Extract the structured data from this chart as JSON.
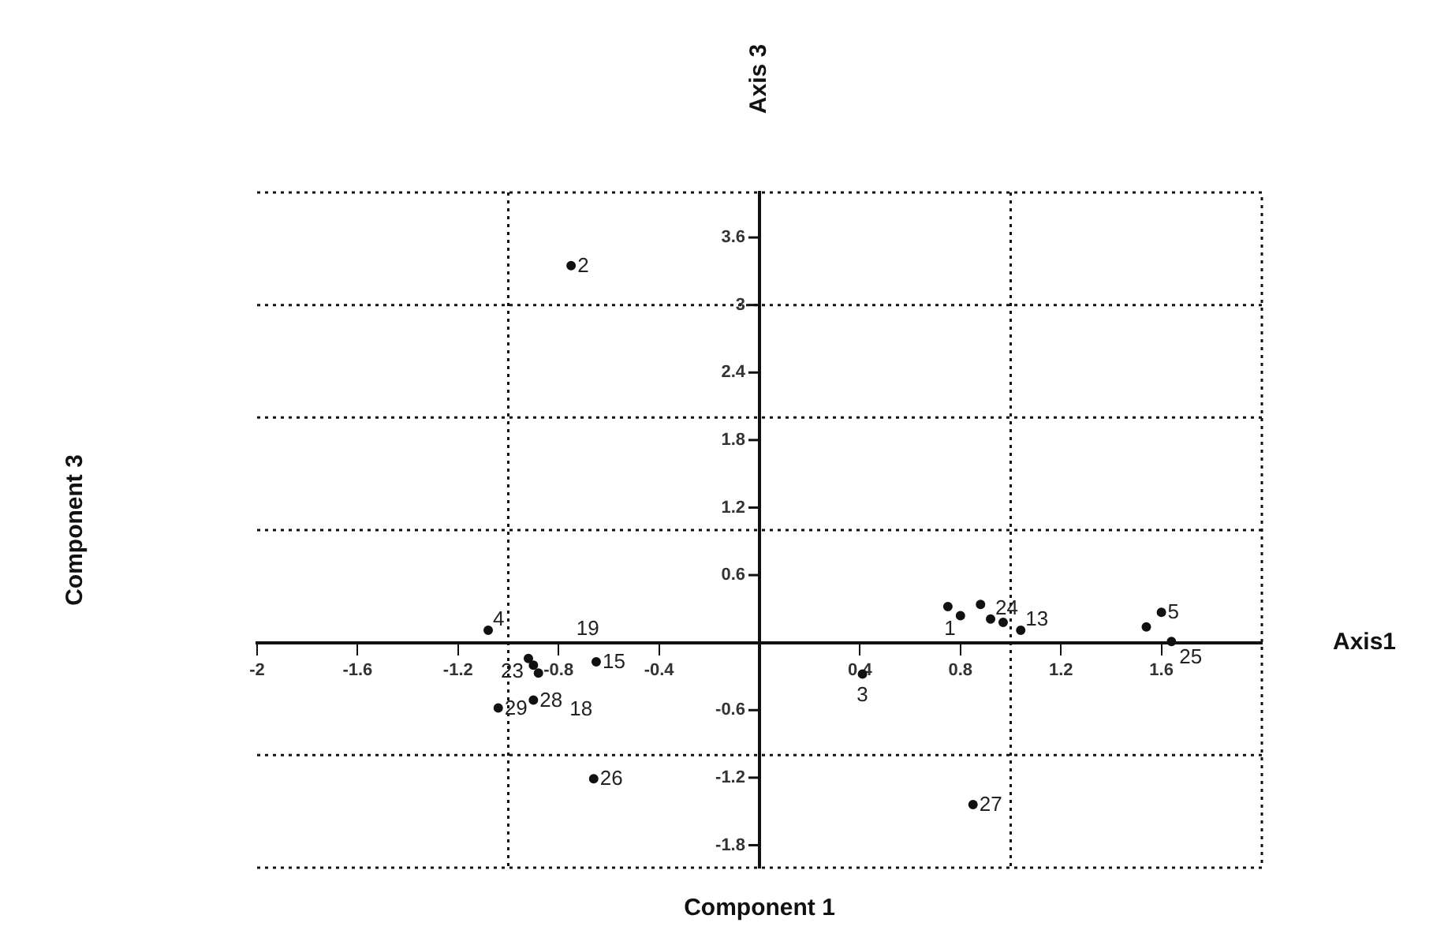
{
  "chart_data": {
    "type": "scatter",
    "xlabel": "Component 1",
    "annotations": [
      "Axis 3",
      "Axis1",
      "Component 3",
      {
        "text": "2",
        "x": -0.75,
        "y": 3.35
      },
      {
        "text": "26",
        "x": -0.66,
        "y": -1.21
      },
      {
        "text": "27",
        "x": 0.85,
        "y": -1.44
      },
      {
        "text": "3",
        "x": 0.41,
        "y": -0.28
      },
      {
        "text": "4",
        "x": -1.08,
        "y": 0.11
      },
      {
        "text": "29",
        "x": -1.04,
        "y": -0.58
      },
      {
        "text": "28",
        "x": -0.9,
        "y": -0.51
      },
      {
        "text": "23",
        "x": -0.92,
        "y": -0.14
      },
      {
        "text": "18",
        "x": -0.9,
        "y": -0.2
      },
      {
        "text": "19",
        "x": -0.88,
        "y": -0.27
      },
      {
        "text": "15",
        "x": -0.65,
        "y": -0.17
      },
      {
        "text": "1",
        "x": 0.8,
        "y": 0.24
      },
      {
        "text": "24",
        "x": 0.92,
        "y": 0.21
      },
      {
        "text": "13",
        "x": 1.04,
        "y": 0.11
      },
      {
        "text": "5",
        "x": 1.6,
        "y": 0.27
      },
      {
        "text": "25",
        "x": 1.64,
        "y": 0.01
      }
    ],
    "xlim": [
      -2,
      2
    ],
    "ylim": [
      -2,
      4
    ],
    "xticks": [
      -2,
      -1.6,
      -1.2,
      -0.8,
      -0.4,
      0.4,
      0.8,
      1.2,
      1.6
    ],
    "yticks": [
      -1.8,
      -1.2,
      -0.6,
      0.6,
      1.2,
      1.8,
      2.4,
      3,
      3.6
    ],
    "grid": false,
    "legend": false,
    "marker": "circle",
    "ref_lines": [
      {
        "axis": "x",
        "value": -1,
        "line_style": "dotted"
      },
      {
        "axis": "x",
        "value": 1,
        "line_style": "dotted"
      },
      {
        "axis": "y",
        "value": 3,
        "line_style": "dotted"
      },
      {
        "axis": "y",
        "value": 2,
        "line_style": "dotted"
      },
      {
        "axis": "y",
        "value": 1,
        "line_style": "dotted"
      },
      {
        "axis": "y",
        "value": -1,
        "line_style": "dotted"
      }
    ],
    "series": [
      {
        "color": "#111111",
        "x": [
          -0.75,
          -0.66,
          0.85,
          0.41,
          -1.08,
          -1.04,
          -0.9,
          -0.92,
          -0.9,
          -0.88,
          -0.65,
          0.75,
          0.8,
          0.88,
          0.92,
          0.97,
          1.04,
          1.6,
          1.54,
          1.64
        ],
        "values": [
          3.35,
          -1.21,
          -1.44,
          -0.28,
          0.11,
          -0.58,
          -0.51,
          -0.14,
          -0.2,
          -0.27,
          -0.17,
          0.32,
          0.24,
          0.34,
          0.21,
          0.18,
          0.11,
          0.27,
          0.14,
          0.01
        ]
      }
    ]
  }
}
